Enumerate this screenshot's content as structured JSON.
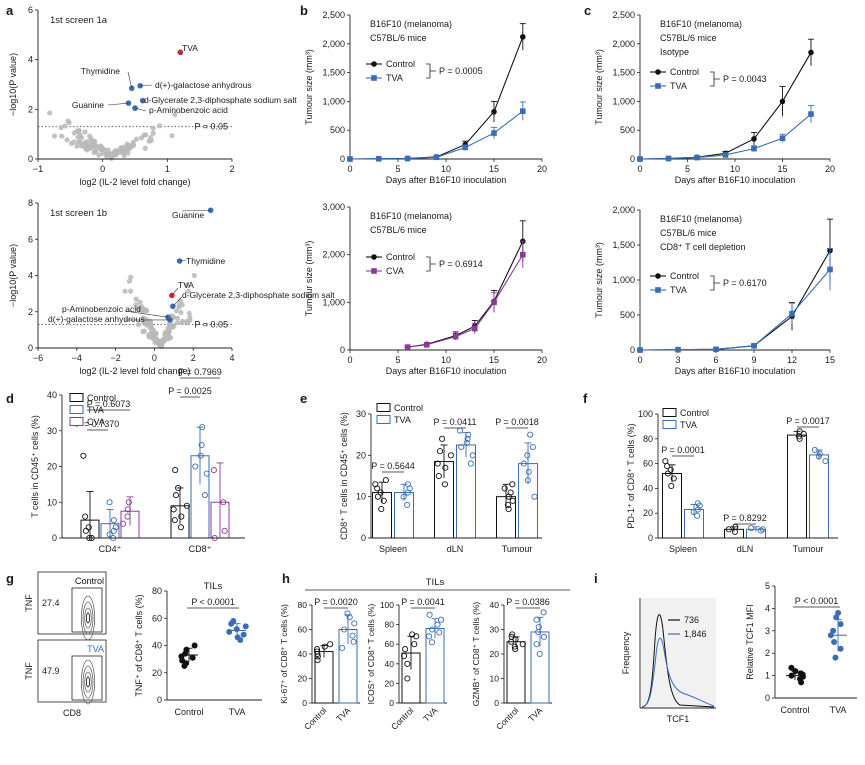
{
  "figure": {
    "panel_letters": [
      "a",
      "b",
      "c",
      "d",
      "e",
      "f",
      "g",
      "h",
      "i"
    ],
    "colors": {
      "control": "#111111",
      "tva": "#3a6db5",
      "cva": "#8b3a96",
      "sig": "#d62828",
      "grey": "#b8b8b8",
      "flow_bg": "#f1f1f1"
    }
  },
  "chart_data": [
    {
      "id": "a1",
      "type": "scatter",
      "title": "1st screen 1a",
      "xlabel": "log2 (IL-2 level fold change)",
      "ylabel": "−log10(P value)",
      "xlim": [
        -1,
        2
      ],
      "ylim": [
        0,
        6
      ],
      "xticks": [
        "−1",
        "0",
        "1",
        "2"
      ],
      "yticks": [
        "0",
        "2",
        "4",
        "6"
      ],
      "threshold": {
        "y": 1.3,
        "label": "P = 0.05"
      },
      "highlight": [
        {
          "name": "TVA",
          "x": 1.2,
          "y": 4.3,
          "color": "sig"
        },
        {
          "name": "Thymidine",
          "x": 0.45,
          "y": 2.85,
          "color": "tva"
        },
        {
          "name": "d(+)-galactose anhydrous",
          "x": 0.58,
          "y": 2.95,
          "color": "tva"
        },
        {
          "name": "d-Glycerate 2,3-diphosphate sodium salt",
          "x": 0.62,
          "y": 2.35,
          "color": "tva"
        },
        {
          "name": "p-Aminobenzoic acid",
          "x": 0.5,
          "y": 2.05,
          "color": "tva"
        },
        {
          "name": "Guanine",
          "x": 0.4,
          "y": 2.25,
          "color": "tva"
        }
      ],
      "cloud": {
        "center_x": 0.15,
        "spread": 0.55,
        "n": 110
      }
    },
    {
      "id": "a2",
      "type": "scatter",
      "title": "1st screen 1b",
      "xlabel": "log2 (IL-2 level fold change)",
      "ylabel": "−log10(P value)",
      "xlim": [
        -6,
        4
      ],
      "ylim": [
        0,
        8
      ],
      "xticks": [
        "−6",
        "−4",
        "−2",
        "0",
        "2",
        "4"
      ],
      "yticks": [
        "0",
        "2",
        "4",
        "6",
        "8"
      ],
      "threshold": {
        "y": 1.3,
        "label": "P = 0.05"
      },
      "highlight": [
        {
          "name": "Guanine",
          "x": 2.9,
          "y": 7.6,
          "color": "tva"
        },
        {
          "name": "Thymidine",
          "x": 1.3,
          "y": 4.8,
          "color": "tva"
        },
        {
          "name": "TVA",
          "x": 0.9,
          "y": 2.9,
          "color": "sig"
        },
        {
          "name": "d-Glycerate 2,3-diphosphate sodium salt",
          "x": 0.95,
          "y": 2.3,
          "color": "tva"
        },
        {
          "name": "p-Aminobenzoic acid",
          "x": 0.7,
          "y": 1.7,
          "color": "tva"
        },
        {
          "name": "d(+)-galactose anhydrous",
          "x": 0.8,
          "y": 1.55,
          "color": "tva"
        }
      ],
      "cloud": {
        "center_x": 0.3,
        "spread": 1.1,
        "n": 110
      }
    },
    {
      "id": "b1",
      "type": "line",
      "text_lines": [
        "B16F10 (melanoma)",
        "C57BL/6 mice"
      ],
      "xlabel": "Days after B16F10 inoculation",
      "ylabel": "Tumour size (mm³)",
      "xlim": [
        0,
        20
      ],
      "ylim": [
        0,
        2500
      ],
      "xticks": [
        "0",
        "5",
        "10",
        "15",
        "20"
      ],
      "yticks": [
        "0",
        "500",
        "1,000",
        "1,500",
        "2,000",
        "2,500"
      ],
      "x": [
        0,
        3,
        6,
        9,
        12,
        15,
        18
      ],
      "series": [
        {
          "name": "Control",
          "color": "control",
          "marker": "circle",
          "values": [
            0,
            5,
            10,
            35,
            250,
            820,
            2120
          ],
          "err": [
            0,
            3,
            5,
            15,
            60,
            180,
            230
          ]
        },
        {
          "name": "TVA",
          "color": "tva",
          "marker": "square",
          "values": [
            0,
            4,
            8,
            30,
            200,
            450,
            830
          ],
          "err": [
            0,
            3,
            5,
            12,
            45,
            100,
            160
          ]
        }
      ],
      "pvalue": "P = 0.0005"
    },
    {
      "id": "b2",
      "type": "line",
      "text_lines": [
        "B16F10 (melanoma)",
        "C57BL/6 mice"
      ],
      "xlabel": "Days after B16F10 inoculation",
      "ylabel": "Tumour size (mm³)",
      "xlim": [
        0,
        20
      ],
      "ylim": [
        0,
        3000
      ],
      "xticks": [
        "0",
        "5",
        "10",
        "15",
        "20"
      ],
      "yticks": [
        "0",
        "1,000",
        "2,000",
        "3,000"
      ],
      "x": [
        6,
        8,
        11,
        13,
        15,
        18
      ],
      "series": [
        {
          "name": "Control",
          "color": "control",
          "marker": "circle",
          "values": [
            60,
            120,
            300,
            500,
            1020,
            2280
          ],
          "err": [
            20,
            35,
            80,
            120,
            230,
            430
          ]
        },
        {
          "name": "CVA",
          "color": "cva",
          "marker": "square",
          "values": [
            60,
            110,
            280,
            450,
            1000,
            2000
          ],
          "err": [
            20,
            30,
            70,
            110,
            200,
            280
          ]
        }
      ],
      "pvalue": "P = 0.6914"
    },
    {
      "id": "c1",
      "type": "line",
      "text_lines": [
        "B16F10 (melanoma)",
        "C57BL/6 mice",
        "Isotype"
      ],
      "xlabel": "Days after B16F10 inoculation",
      "ylabel": "Tumour size (mm³)",
      "xlim": [
        0,
        20
      ],
      "ylim": [
        0,
        2500
      ],
      "xticks": [
        "0",
        "5",
        "10",
        "15",
        "20"
      ],
      "yticks": [
        "0",
        "500",
        "1,000",
        "1,500",
        "2,000",
        "2,500"
      ],
      "x": [
        0,
        3,
        6,
        9,
        12,
        15,
        18
      ],
      "series": [
        {
          "name": "Control",
          "color": "control",
          "marker": "circle",
          "values": [
            0,
            10,
            30,
            100,
            350,
            1000,
            1850
          ],
          "err": [
            0,
            5,
            10,
            30,
            110,
            260,
            230
          ]
        },
        {
          "name": "TVA",
          "color": "tva",
          "marker": "square",
          "values": [
            0,
            8,
            25,
            70,
            180,
            360,
            780
          ],
          "err": [
            0,
            5,
            10,
            20,
            50,
            70,
            150
          ]
        }
      ],
      "pvalue": "P = 0.0043"
    },
    {
      "id": "c2",
      "type": "line",
      "text_lines": [
        "B16F10 (melanoma)",
        "C57BL/6 mice",
        "CD8⁺ T cell depletion"
      ],
      "xlabel": "Days after B16F10 inoculation",
      "ylabel": "Tumour size (mm³)",
      "xlim": [
        0,
        15
      ],
      "ylim": [
        0,
        2000
      ],
      "xticks": [
        "0",
        "3",
        "6",
        "9",
        "12",
        "15"
      ],
      "yticks": [
        "0",
        "500",
        "1,000",
        "1,500",
        "2,000"
      ],
      "x": [
        0,
        3,
        6,
        9,
        12,
        15
      ],
      "series": [
        {
          "name": "Control",
          "color": "control",
          "marker": "circle",
          "values": [
            0,
            5,
            10,
            60,
            480,
            1420
          ],
          "err": [
            0,
            3,
            5,
            20,
            200,
            450
          ]
        },
        {
          "name": "TVA",
          "color": "tva",
          "marker": "square",
          "values": [
            0,
            5,
            10,
            60,
            520,
            1150
          ],
          "err": [
            0,
            3,
            5,
            20,
            150,
            300
          ]
        }
      ],
      "pvalue": "P = 0.6170"
    },
    {
      "id": "d",
      "type": "bar",
      "ylabel": "T cells in CD45⁺ cells (%)",
      "ylim": [
        0,
        40
      ],
      "yticks": [
        "0",
        "10",
        "20",
        "30",
        "40"
      ],
      "categories": [
        "CD4⁺",
        "CD8⁺"
      ],
      "series": [
        {
          "name": "Control",
          "color": "control",
          "values": [
            5,
            9
          ],
          "err": [
            8,
            5
          ],
          "points": [
            [
              0,
              0,
              2,
              3,
              6,
              23
            ],
            [
              3,
              5,
              6,
              8,
              9,
              12,
              14,
              19
            ]
          ]
        },
        {
          "name": "TVA",
          "color": "tva",
          "values": [
            4,
            23
          ],
          "err": [
            4,
            8
          ],
          "points": [
            [
              0,
              1,
              2,
              3,
              5,
              10
            ],
            [
              12,
              18,
              20,
              23,
              26,
              31
            ]
          ]
        },
        {
          "name": "CVA",
          "color": "cva",
          "values": [
            7.5,
            10
          ],
          "err": [
            4,
            11
          ],
          "points": [
            [
              4,
              6,
              8,
              10
            ],
            [
              0,
              2,
              10,
              19
            ]
          ]
        }
      ],
      "pvalues": [
        "P = 0.7370",
        "P = 0.6073",
        "P = 0.0025",
        "P = 0.7969"
      ]
    },
    {
      "id": "e",
      "type": "bar",
      "ylabel": "CD8⁺ T cells in CD45⁺ cells (%)",
      "ylim": [
        0,
        30
      ],
      "yticks": [
        "0",
        "10",
        "20",
        "30"
      ],
      "categories": [
        "Spleen",
        "dLN",
        "Tumour"
      ],
      "series": [
        {
          "name": "Control",
          "color": "control",
          "values": [
            11,
            18.5,
            10
          ],
          "err": [
            2.5,
            4,
            3
          ],
          "points": [
            [
              7,
              9,
              10,
              11,
              12,
              13,
              14
            ],
            [
              13,
              15,
              17,
              18,
              20,
              21,
              24
            ],
            [
              7,
              8,
              9,
              10,
              11,
              12,
              13
            ]
          ]
        },
        {
          "name": "TVA",
          "color": "tva",
          "values": [
            11,
            22.5,
            18
          ],
          "err": [
            2,
            3,
            5
          ],
          "points": [
            [
              8,
              10,
              11,
              12,
              13
            ],
            [
              18,
              20,
              22,
              23,
              24,
              25,
              26
            ],
            [
              10,
              14,
              16,
              18,
              20,
              22,
              25
            ]
          ]
        }
      ],
      "pvalues": [
        "P = 0.5644",
        "P = 0.0411",
        "P = 0.0018"
      ]
    },
    {
      "id": "f",
      "type": "bar",
      "ylabel": "PD-1⁺ of CD8⁺ T cells (%)",
      "ylim": [
        0,
        100
      ],
      "yticks": [
        "0",
        "20",
        "40",
        "60",
        "80",
        "100"
      ],
      "categories": [
        "Spleen",
        "dLN",
        "Tumour"
      ],
      "series": [
        {
          "name": "Control",
          "color": "control",
          "values": [
            52,
            7,
            83
          ],
          "err": [
            7,
            2,
            3
          ],
          "points": [
            [
              42,
              48,
              52,
              55,
              58,
              62
            ],
            [
              5,
              7,
              9
            ],
            [
              80,
              82,
              84,
              86
            ]
          ]
        },
        {
          "name": "TVA",
          "color": "tva",
          "values": [
            23,
            7,
            67
          ],
          "err": [
            4,
            2,
            4
          ],
          "points": [
            [
              18,
              21,
              23,
              26,
              28
            ],
            [
              6,
              7,
              8
            ],
            [
              62,
              66,
              68,
              71
            ]
          ]
        }
      ],
      "pvalues": [
        "P = 0.0001",
        "P = 0.8292",
        "P = 0.0017"
      ]
    },
    {
      "id": "g",
      "type": "scatter",
      "title": "TILs",
      "ylabel": "TNF⁺ of CD8⁺ T cells (%)",
      "ylim": [
        0,
        80
      ],
      "yticks": [
        "0",
        "20",
        "40",
        "60",
        "80"
      ],
      "categories": [
        "Control",
        "TVA"
      ],
      "series": [
        {
          "name": "Control",
          "color": "control",
          "mean": 33,
          "err": 5,
          "points": [
            25,
            27,
            29,
            31,
            32,
            34,
            37,
            40
          ]
        },
        {
          "name": "TVA",
          "color": "tva",
          "mean": 51,
          "err": 5,
          "points": [
            44,
            46,
            48,
            50,
            52,
            54,
            56,
            58
          ]
        }
      ],
      "pvalue": "P < 0.0001",
      "flow": {
        "ylabel": "TNF",
        "xlabel": "CD8",
        "gates": [
          {
            "label": "Control",
            "pct": "27.4"
          },
          {
            "label": "TVA",
            "pct": "47.9"
          }
        ]
      }
    },
    {
      "id": "h",
      "type": "bar",
      "group_title": "TILs",
      "panels": [
        {
          "ylabel": "Ki-67⁺ of CD8⁺ T cells (%)",
          "ylim": [
            0,
            80
          ],
          "yticks": [
            "0",
            "20",
            "40",
            "60",
            "80"
          ],
          "categories": [
            "Control",
            "TVA"
          ],
          "values": [
            42,
            60
          ],
          "err": [
            5,
            12
          ],
          "points": [
            [
              35,
              38,
              40,
              42,
              44,
              46,
              48
            ],
            [
              45,
              50,
              55,
              60,
              65,
              70,
              73
            ]
          ],
          "pvalue": "P = 0.0020"
        },
        {
          "ylabel": "ICOS⁺ of CD8⁺ T cells (%)",
          "ylim": [
            0,
            100
          ],
          "yticks": [
            "0",
            "20",
            "40",
            "60",
            "80",
            "100"
          ],
          "categories": [
            "Control",
            "TVA"
          ],
          "values": [
            51,
            76
          ],
          "err": [
            17,
            10
          ],
          "points": [
            [
              25,
              40,
              48,
              55,
              60,
              68,
              70
            ],
            [
              62,
              68,
              72,
              75,
              80,
              85,
              90
            ]
          ],
          "pvalue": "P = 0.0041"
        },
        {
          "ylabel": "GZMB⁺ of CD8⁺ T cells (%)",
          "ylim": [
            0,
            40
          ],
          "yticks": [
            "0",
            "10",
            "20",
            "30",
            "40"
          ],
          "categories": [
            "Control",
            "TVA"
          ],
          "values": [
            25,
            29
          ],
          "err": [
            2,
            6
          ],
          "points": [
            [
              22,
              23,
              24,
              25,
              26,
              27,
              28
            ],
            [
              20,
              24,
              27,
              29,
              31,
              34,
              37
            ]
          ],
          "pvalue": "P = 0.0386"
        }
      ]
    },
    {
      "id": "i",
      "type": "scatter",
      "ylabel": "Relative TCF1 MFI",
      "ylim": [
        0,
        5
      ],
      "yticks": [
        "0",
        "1",
        "2",
        "3",
        "4",
        "5"
      ],
      "categories": [
        "Control",
        "TVA"
      ],
      "series": [
        {
          "name": "Control",
          "color": "control",
          "mean": 1.0,
          "err": 0.2,
          "points": [
            0.7,
            0.85,
            0.95,
            1.0,
            1.05,
            1.1,
            1.2,
            1.35
          ]
        },
        {
          "name": "TVA",
          "color": "tva",
          "mean": 2.8,
          "err": 0.7,
          "points": [
            1.8,
            2.2,
            2.5,
            2.8,
            3.0,
            3.3,
            3.6,
            3.8
          ]
        }
      ],
      "pvalue": "P < 0.0001",
      "histogram": {
        "ylabel": "Frequency",
        "xlabel": "TCF1",
        "legend": [
          {
            "name": "736",
            "color": "control"
          },
          {
            "name": "1,846",
            "color": "tva"
          }
        ]
      }
    }
  ]
}
